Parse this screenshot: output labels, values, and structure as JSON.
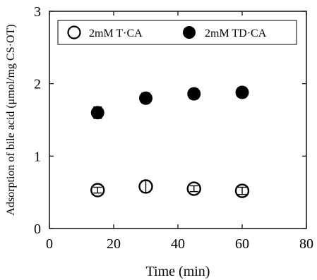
{
  "chart_data": {
    "type": "scatter",
    "title": "",
    "xlabel": "Time (min)",
    "ylabel": "Adsorption of bile acid (μmol/mg CS·OT)",
    "xlim": [
      0,
      80
    ],
    "ylim": [
      0,
      3
    ],
    "x_ticks": [
      0,
      20,
      40,
      60,
      80
    ],
    "y_ticks": [
      0,
      1,
      2,
      3
    ],
    "grid": false,
    "legend_position": "top",
    "series": [
      {
        "name": "2mM T·CA",
        "marker": "open-circle",
        "color": "#000000",
        "points": [
          {
            "x": 15,
            "y": 0.53,
            "err": 0.04
          },
          {
            "x": 30,
            "y": 0.58,
            "err": 0.08
          },
          {
            "x": 45,
            "y": 0.55,
            "err": 0.04
          },
          {
            "x": 60,
            "y": 0.52,
            "err": 0.05
          }
        ]
      },
      {
        "name": "2mM TD·CA",
        "marker": "filled-circle",
        "color": "#000000",
        "points": [
          {
            "x": 15,
            "y": 1.6,
            "err": 0.08
          },
          {
            "x": 30,
            "y": 1.8,
            "err": 0.07
          },
          {
            "x": 45,
            "y": 1.86,
            "err": 0.07
          },
          {
            "x": 60,
            "y": 1.88,
            "err": 0.07
          }
        ]
      }
    ]
  }
}
